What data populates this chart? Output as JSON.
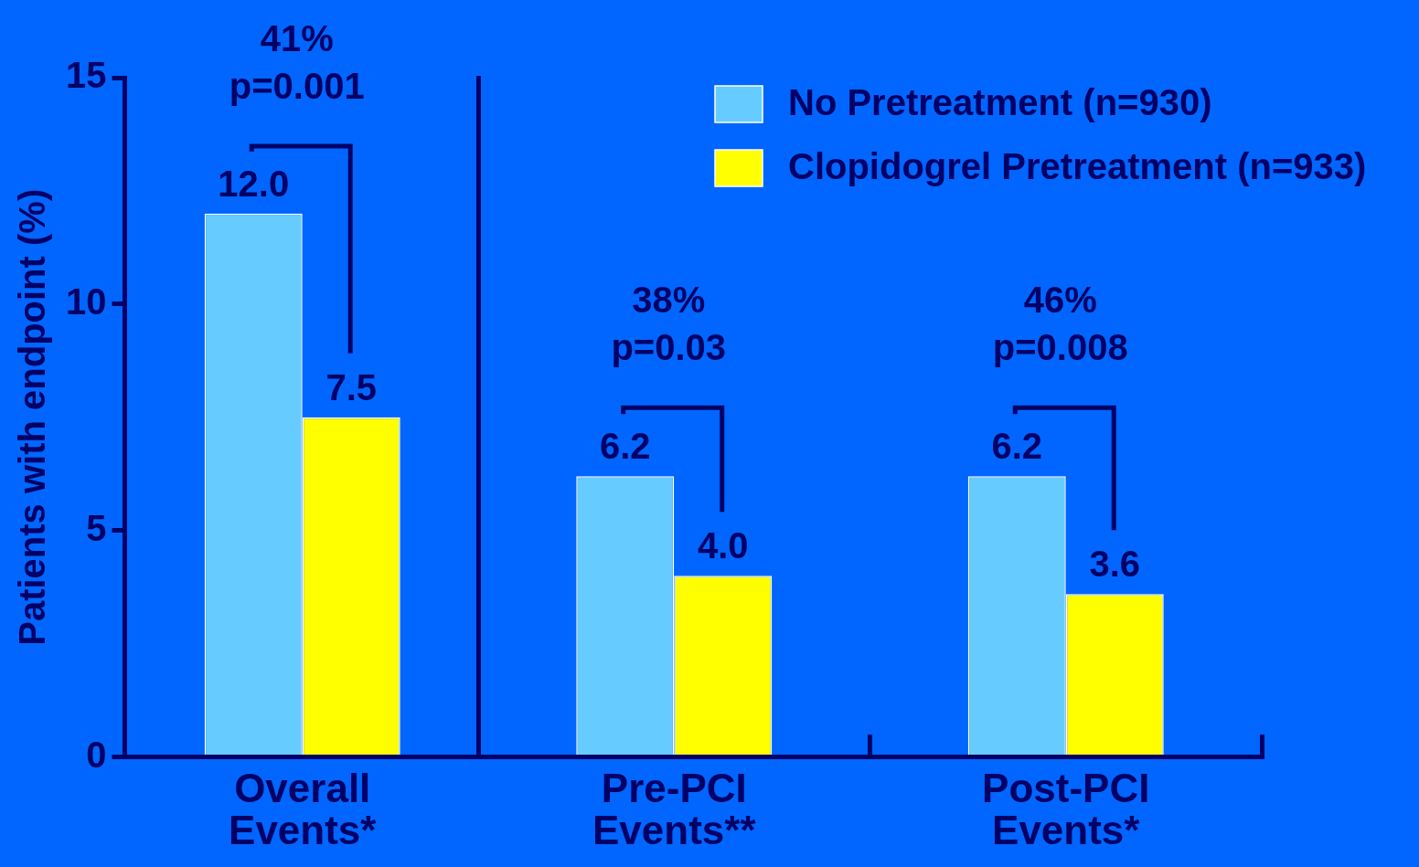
{
  "chart_data": [
    {
      "type": "bar",
      "ylabel": "Patients with endpoint (%)",
      "categories": [
        "Overall Events*"
      ],
      "series": [
        {
          "color": "#66ccff",
          "values": [
            12.0
          ],
          "value_labels": [
            "12.0"
          ]
        },
        {
          "color": "#ffff00",
          "values": [
            7.5
          ],
          "value_labels": [
            "7.5"
          ]
        }
      ],
      "ylim": [
        0,
        15
      ],
      "yticks": [
        0,
        5,
        10,
        15
      ],
      "grid": false,
      "annotations": [
        "41%\np=0.001"
      ]
    },
    {
      "type": "bar",
      "categories": [
        "Pre-PCI Events**",
        "Post-PCI Events*"
      ],
      "series": [
        {
          "name": "No Pretreatment (n=930)",
          "color": "#66ccff",
          "values": [
            6.2,
            6.2
          ],
          "value_labels": [
            "6.2",
            "6.2"
          ]
        },
        {
          "name": "Clopidogrel Pretreatment (n=933)",
          "color": "#ffff00",
          "values": [
            4.0,
            3.6
          ],
          "value_labels": [
            "4.0",
            "3.6"
          ]
        }
      ],
      "ylim": [
        0,
        15
      ],
      "yticks": [
        0,
        5,
        10,
        15
      ],
      "grid": false,
      "legend": "top right",
      "tick_labels": "x",
      "annotations": [
        "38%\np=0.03",
        "46%\np=0.008"
      ]
    }
  ]
}
